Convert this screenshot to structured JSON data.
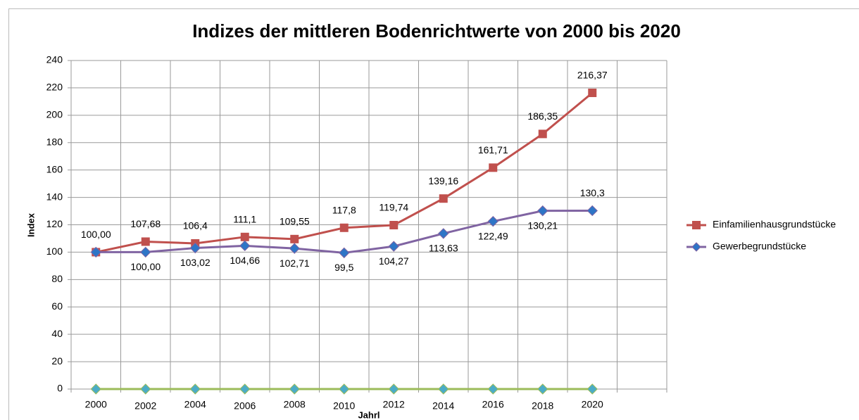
{
  "chart_data": {
    "type": "line",
    "title": "Indizes der mittleren Bodenrichtwerte von 2000 bis 2020",
    "x_label": "Jahrl",
    "y_label": "Index",
    "categories": [
      "2000",
      "2002",
      "2004",
      "2006",
      "2008",
      "2010",
      "2012",
      "2014",
      "2016",
      "2018",
      "2020",
      null
    ],
    "series": [
      {
        "name": "Einfamilienhausgrundstücke",
        "color": "#c0504d",
        "marker": "square",
        "marker_color": "#c0504d",
        "values": [
          100,
          107.68,
          106.4,
          111.1,
          109.55,
          117.8,
          119.74,
          139.16,
          161.71,
          186.35,
          216.37,
          null
        ],
        "value_labels": [
          "100,00",
          "107,68",
          "106,4",
          "111,1",
          "109,55",
          "117,8",
          "119,74",
          "139,16",
          "161,71",
          "186,35",
          "216,37",
          null
        ]
      },
      {
        "name": "Gewerbegrundstücke",
        "color": "#8064a2",
        "marker": "diamond",
        "marker_color": "#2e75c6",
        "values": [
          100,
          100,
          103.02,
          104.66,
          102.71,
          99.5,
          104.27,
          113.63,
          122.49,
          130.21,
          130.3,
          null
        ],
        "value_labels": [
          null,
          "100,00",
          "103,02",
          "104,66",
          "102,71",
          "99,5",
          "104,27",
          "113,63",
          "122,49",
          "130,21",
          "130,3",
          null
        ]
      },
      {
        "color": "#9bbb59",
        "marker": "diamond",
        "marker_color": "#4bacc6",
        "values": [
          0,
          0,
          0,
          0,
          0,
          0,
          0,
          0,
          0,
          0,
          0,
          null
        ]
      }
    ],
    "ylim": [
      0,
      240
    ],
    "yticks": [
      0,
      20,
      40,
      60,
      80,
      100,
      120,
      140,
      160,
      180,
      200,
      220,
      240
    ],
    "grid": true,
    "legend": "right"
  }
}
